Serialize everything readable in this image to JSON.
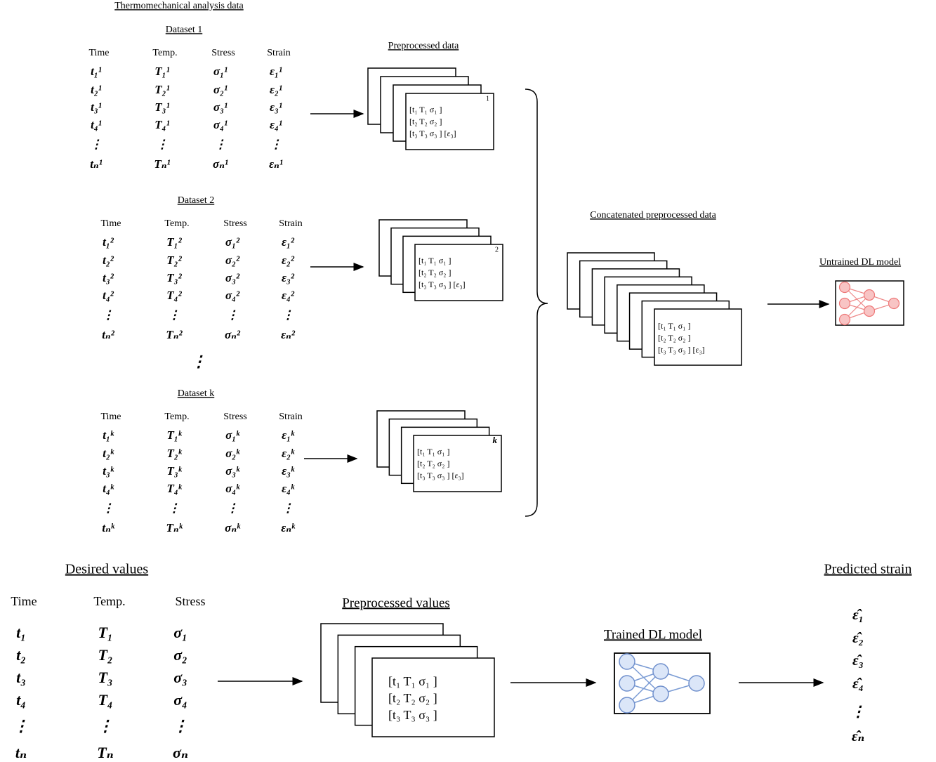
{
  "title": "Thermomechanical analysis data",
  "preprocessed_title": "Preprocessed data",
  "datasets": [
    {
      "label": "Dataset 1",
      "headers": [
        "Time",
        "Temp.",
        "Stress",
        "Strain"
      ],
      "rows": [
        [
          "t₁¹",
          "T₁¹",
          "σ₁¹",
          "ε₁¹"
        ],
        [
          "t₂¹",
          "T₂¹",
          "σ₂¹",
          "ε₂¹"
        ],
        [
          "t₃¹",
          "T₃¹",
          "σ₃¹",
          "ε₃¹"
        ],
        [
          "t₄¹",
          "T₄¹",
          "σ₄¹",
          "ε₄¹"
        ],
        [
          "⋮",
          "⋮",
          "⋮",
          "⋮"
        ],
        [
          "tₙ¹",
          "Tₙ¹",
          "σₙ¹",
          "εₙ¹"
        ]
      ],
      "card_index": "1",
      "card_rows": [
        "[t₁  T₁  σ₁ ]",
        "[t₂  T₂  σ₂ ]",
        "[t₃  T₃  σ₃ ] [ε₃]"
      ]
    },
    {
      "label": "Dataset 2",
      "headers": [
        "Time",
        "Temp.",
        "Stress",
        "Strain"
      ],
      "rows": [
        [
          "t₁²",
          "T₁²",
          "σ₁²",
          "ε₁²"
        ],
        [
          "t₂²",
          "T₂²",
          "σ₂²",
          "ε₂²"
        ],
        [
          "t₃²",
          "T₃²",
          "σ₃²",
          "ε₃²"
        ],
        [
          "t₄²",
          "T₄²",
          "σ₄²",
          "ε₄²"
        ],
        [
          "⋮",
          "⋮",
          "⋮",
          "⋮"
        ],
        [
          "tₙ²",
          "Tₙ²",
          "σₙ²",
          "εₙ²"
        ]
      ],
      "card_index": "2",
      "card_rows": [
        "[t₁  T₁  σ₁ ]",
        "[t₂  T₂  σ₂ ]",
        "[t₃  T₃  σ₃ ] [ε₃]"
      ]
    },
    {
      "label": "Dataset k",
      "headers": [
        "Time",
        "Temp.",
        "Stress",
        "Strain"
      ],
      "rows": [
        [
          "t₁ᵏ",
          "T₁ᵏ",
          "σ₁ᵏ",
          "ε₁ᵏ"
        ],
        [
          "t₂ᵏ",
          "T₂ᵏ",
          "σ₂ᵏ",
          "ε₂ᵏ"
        ],
        [
          "t₃ᵏ",
          "T₃ᵏ",
          "σ₃ᵏ",
          "ε₃ᵏ"
        ],
        [
          "t₄ᵏ",
          "T₄ᵏ",
          "σ₄ᵏ",
          "ε₄ᵏ"
        ],
        [
          "⋮",
          "⋮",
          "⋮",
          "⋮"
        ],
        [
          "tₙᵏ",
          "Tₙᵏ",
          "σₙᵏ",
          "εₙᵏ"
        ]
      ],
      "card_index": "k",
      "card_rows": [
        "[t₁  T₁  σ₁ ]",
        "[t₂  T₂  σ₂ ]",
        "[t₃  T₃  σ₃ ] [ε₃]"
      ]
    }
  ],
  "ellipsis": "⋮",
  "concatenated": {
    "title": "Concatenated preprocessed data",
    "rows": [
      "[t₁  T₁  σ₁ ]",
      "[t₂  T₂  σ₂ ]",
      "[t₃  T₃  σ₃ ] [ε₃]"
    ]
  },
  "untrained_model": "Untrained DL model",
  "bottom": {
    "desired_title": "Desired values",
    "headers": [
      "Time",
      "Temp.",
      "Stress"
    ],
    "rows": [
      [
        "t₁",
        "T₁",
        "σ₁"
      ],
      [
        "t₂",
        "T₂",
        "σ₂"
      ],
      [
        "t₃",
        "T₃",
        "σ₃"
      ],
      [
        "t₄",
        "T₄",
        "σ₄"
      ],
      [
        "⋮",
        "⋮",
        "⋮"
      ],
      [
        "tₙ",
        "Tₙ",
        "σₙ"
      ]
    ],
    "preprocessed_title": "Preprocessed values",
    "card_rows": [
      "[t₁  T₁  σ₁ ]",
      "[t₂  T₂  σ₂ ]",
      "[t₃  T₃  σ₃ ]"
    ],
    "trained_model": "Trained DL model",
    "predicted_title": "Predicted strain",
    "predicted": [
      "ε̂₁",
      "ε̂₂",
      "ε̂₃",
      "ε̂₄",
      "⋮",
      "ε̂ₙ"
    ]
  }
}
